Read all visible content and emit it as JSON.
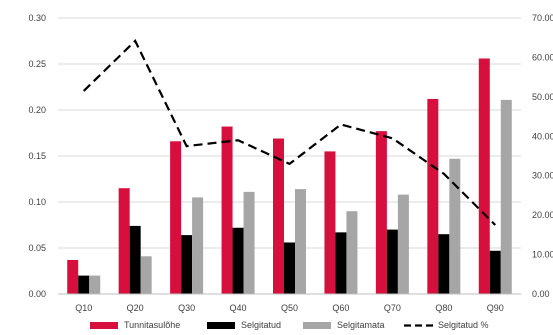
{
  "chart_data": {
    "type": "bar",
    "categories": [
      "Q10",
      "Q20",
      "Q30",
      "Q40",
      "Q50",
      "Q60",
      "Q70",
      "Q80",
      "Q90"
    ],
    "series": [
      {
        "name": "Tunnitasulõhe",
        "kind": "bar",
        "axis": "left",
        "color": "#d70f3c",
        "values": [
          0.037,
          0.115,
          0.166,
          0.182,
          0.169,
          0.155,
          0.177,
          0.212,
          0.256
        ]
      },
      {
        "name": "Selgitatud",
        "kind": "bar",
        "axis": "left",
        "color": "#000000",
        "values": [
          0.02,
          0.074,
          0.064,
          0.072,
          0.056,
          0.067,
          0.07,
          0.065,
          0.047
        ]
      },
      {
        "name": "Selgitamata",
        "kind": "bar",
        "axis": "left",
        "color": "#a6a6a6",
        "values": [
          0.02,
          0.041,
          0.105,
          0.111,
          0.114,
          0.09,
          0.108,
          0.147,
          0.211
        ]
      },
      {
        "name": "Selgitatud %",
        "kind": "line",
        "axis": "right",
        "color": "#000000",
        "dash": true,
        "values": [
          51.5,
          64.2,
          37.5,
          39.0,
          33.0,
          43.0,
          39.5,
          30.5,
          17.5
        ]
      }
    ],
    "y_left": {
      "ylim": [
        0,
        0.3
      ],
      "ticks": [
        "0.00",
        "0.05",
        "0.10",
        "0.15",
        "0.20",
        "0.25",
        "0.30"
      ]
    },
    "y_right": {
      "ylim": [
        0,
        70
      ],
      "ticks": [
        "0.00",
        "10.00",
        "20.00",
        "30.00",
        "40.00",
        "50.00",
        "60.00",
        "70.00"
      ]
    },
    "grid": true,
    "legend": "bottom"
  }
}
